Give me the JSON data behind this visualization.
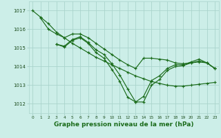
{
  "bg_color": "#cceee8",
  "grid_color": "#aad4cc",
  "line_color": "#1a6b1a",
  "xlabel": "Graphe pression niveau de la mer (hPa)",
  "xlabel_fontsize": 6.5,
  "yticks": [
    1012,
    1013,
    1014,
    1015,
    1016,
    1017
  ],
  "xticks": [
    0,
    1,
    2,
    3,
    4,
    5,
    6,
    7,
    8,
    9,
    10,
    11,
    12,
    13,
    14,
    15,
    16,
    17,
    18,
    19,
    20,
    21,
    22,
    23
  ],
  "xlim": [
    -0.5,
    23.5
  ],
  "ylim": [
    1011.5,
    1017.5
  ],
  "series": [
    {
      "x": [
        0,
        1,
        2,
        3,
        4,
        5,
        6,
        7,
        8,
        9,
        10,
        11,
        12,
        13,
        14,
        15,
        16,
        17,
        18,
        19,
        20,
        21,
        22,
        23
      ],
      "y": [
        1017.0,
        1016.65,
        1016.3,
        1015.85,
        1015.55,
        1015.25,
        1015.0,
        1014.75,
        1014.5,
        1014.3,
        1014.1,
        1013.9,
        1013.7,
        1013.5,
        1013.35,
        1013.2,
        1013.1,
        1013.0,
        1012.95,
        1012.95,
        1013.0,
        1013.05,
        1013.1,
        1013.15
      ]
    },
    {
      "x": [
        1,
        2,
        3,
        4,
        5,
        6,
        7,
        8,
        9,
        10,
        11,
        12,
        13,
        14,
        15,
        16,
        17,
        18,
        19,
        20,
        21,
        22,
        23
      ],
      "y": [
        1016.6,
        1016.0,
        1015.75,
        1015.55,
        1015.75,
        1015.75,
        1015.55,
        1015.25,
        1014.95,
        1014.65,
        1014.35,
        1014.1,
        1013.9,
        1014.45,
        1014.45,
        1014.4,
        1014.35,
        1014.2,
        1014.15,
        1014.2,
        1014.25,
        1014.2,
        1013.9
      ]
    },
    {
      "x": [
        3,
        4,
        5,
        6,
        7,
        8,
        9,
        10,
        11,
        12,
        13,
        14,
        15,
        16,
        17,
        18,
        19,
        20,
        21,
        22,
        23
      ],
      "y": [
        1015.2,
        1015.1,
        1015.45,
        1015.6,
        1015.3,
        1014.9,
        1014.65,
        1014.15,
        1013.55,
        1012.8,
        1012.1,
        1012.1,
        1013.0,
        1013.3,
        1013.8,
        1014.0,
        1014.05,
        1014.2,
        1014.3,
        1014.2,
        1013.9
      ]
    },
    {
      "x": [
        3,
        4,
        5,
        6,
        7,
        8,
        9,
        10,
        11,
        12,
        13,
        14,
        15,
        16,
        17,
        18,
        19,
        20,
        21,
        22,
        23
      ],
      "y": [
        1015.2,
        1015.05,
        1015.4,
        1015.55,
        1015.25,
        1014.75,
        1014.45,
        1013.85,
        1013.2,
        1012.35,
        1012.1,
        1012.4,
        1013.25,
        1013.5,
        1013.9,
        1014.1,
        1014.1,
        1014.25,
        1014.4,
        1014.2,
        1013.9
      ]
    }
  ]
}
